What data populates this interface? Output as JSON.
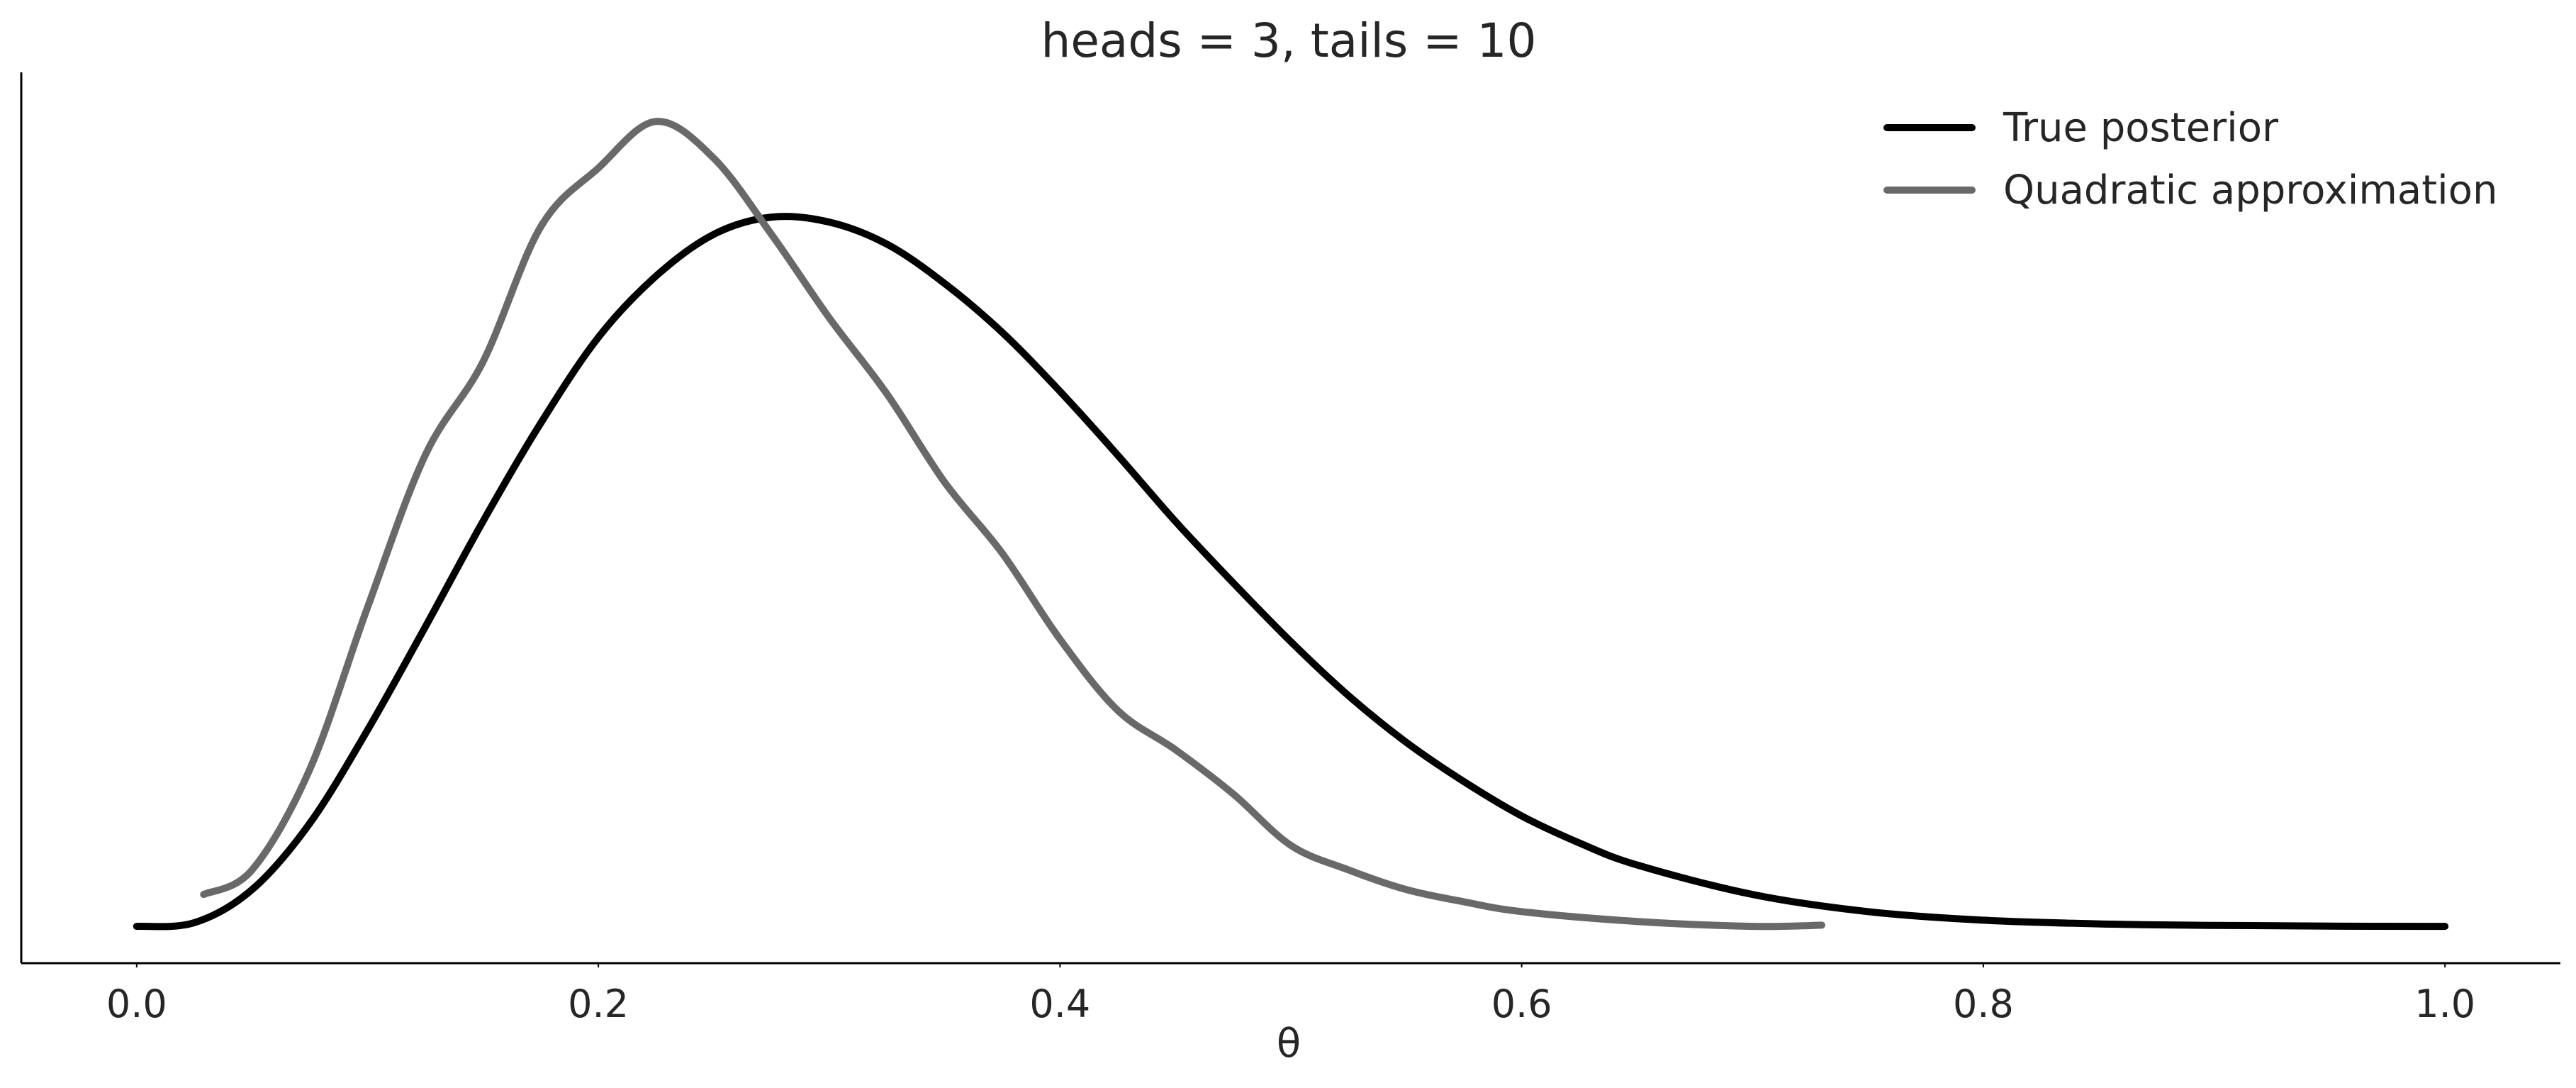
{
  "chart_data": {
    "type": "line",
    "title": "heads = 3, tails = 10",
    "xlabel": "θ",
    "ylabel": "",
    "xlim": [
      -0.05,
      1.05
    ],
    "ylim": [
      -0.15,
      3.48
    ],
    "xticks": [
      0.0,
      0.2,
      0.4,
      0.6,
      0.8,
      1.0
    ],
    "xtick_labels": [
      "0.0",
      "0.2",
      "0.4",
      "0.6",
      "0.8",
      "1.0"
    ],
    "show_yticks": false,
    "grid": false,
    "legend_position": "top-right",
    "series": [
      {
        "name": "True posterior",
        "color": "#000000",
        "style": "smooth",
        "points": [
          [
            0.0,
            0.0
          ],
          [
            0.025,
            0.015
          ],
          [
            0.05,
            0.15
          ],
          [
            0.075,
            0.42
          ],
          [
            0.1,
            0.8
          ],
          [
            0.125,
            1.22
          ],
          [
            0.15,
            1.65
          ],
          [
            0.175,
            2.05
          ],
          [
            0.2,
            2.4
          ],
          [
            0.225,
            2.65
          ],
          [
            0.25,
            2.82
          ],
          [
            0.275,
            2.89
          ],
          [
            0.3,
            2.87
          ],
          [
            0.325,
            2.78
          ],
          [
            0.35,
            2.62
          ],
          [
            0.375,
            2.42
          ],
          [
            0.4,
            2.18
          ],
          [
            0.425,
            1.92
          ],
          [
            0.45,
            1.65
          ],
          [
            0.475,
            1.4
          ],
          [
            0.5,
            1.16
          ],
          [
            0.525,
            0.94
          ],
          [
            0.55,
            0.75
          ],
          [
            0.575,
            0.59
          ],
          [
            0.6,
            0.45
          ],
          [
            0.625,
            0.34
          ],
          [
            0.65,
            0.25
          ],
          [
            0.7,
            0.13
          ],
          [
            0.75,
            0.06
          ],
          [
            0.8,
            0.025
          ],
          [
            0.85,
            0.01
          ],
          [
            0.9,
            0.004
          ],
          [
            0.95,
            0.001
          ],
          [
            1.0,
            0.0
          ]
        ]
      },
      {
        "name": "Quadratic approximation",
        "color": "#696969",
        "style": "smooth",
        "points": [
          [
            0.029,
            0.13
          ],
          [
            0.05,
            0.23
          ],
          [
            0.075,
            0.64
          ],
          [
            0.1,
            1.3
          ],
          [
            0.125,
            1.92
          ],
          [
            0.15,
            2.3
          ],
          [
            0.175,
            2.85
          ],
          [
            0.2,
            3.09
          ],
          [
            0.225,
            3.28
          ],
          [
            0.25,
            3.13
          ],
          [
            0.275,
            2.82
          ],
          [
            0.3,
            2.48
          ],
          [
            0.325,
            2.17
          ],
          [
            0.35,
            1.81
          ],
          [
            0.375,
            1.52
          ],
          [
            0.4,
            1.17
          ],
          [
            0.425,
            0.88
          ],
          [
            0.45,
            0.72
          ],
          [
            0.475,
            0.54
          ],
          [
            0.5,
            0.33
          ],
          [
            0.525,
            0.23
          ],
          [
            0.55,
            0.15
          ],
          [
            0.575,
            0.1
          ],
          [
            0.6,
            0.06
          ],
          [
            0.65,
            0.02
          ],
          [
            0.7,
            0.0
          ],
          [
            0.73,
            0.005
          ]
        ]
      }
    ]
  }
}
